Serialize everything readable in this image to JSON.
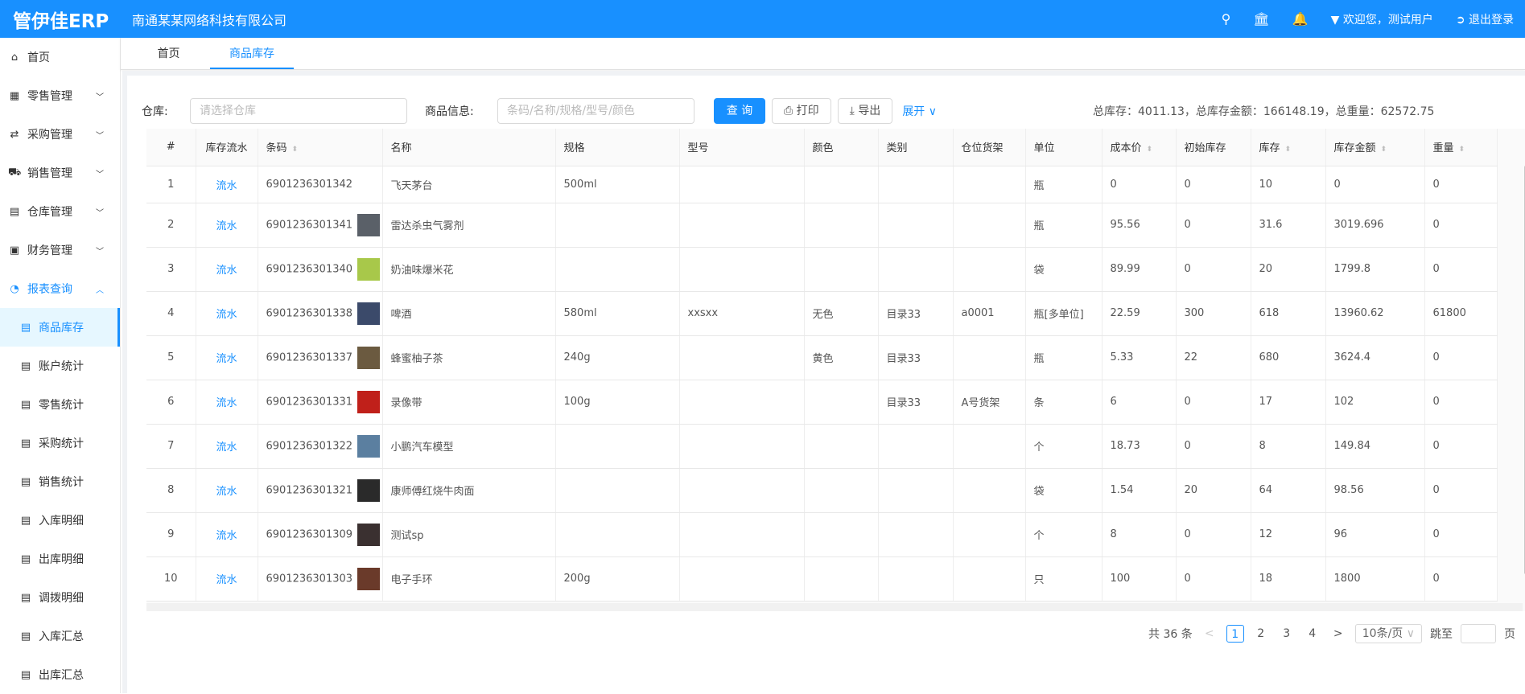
{
  "header": {
    "logo": "管伊佳ERP",
    "company": "南通某某网络科技有限公司",
    "welcome": "欢迎您，测试用户",
    "logout": "退出登录",
    "brand_color": "#1890ff"
  },
  "sidebar": {
    "items": [
      {
        "label": "首页",
        "icon": "home-icon"
      },
      {
        "label": "零售管理",
        "icon": "gift-icon"
      },
      {
        "label": "采购管理",
        "icon": "swap-icon"
      },
      {
        "label": "销售管理",
        "icon": "cart-icon"
      },
      {
        "label": "仓库管理",
        "icon": "warehouse-icon"
      },
      {
        "label": "财务管理",
        "icon": "finance-icon"
      },
      {
        "label": "报表查询",
        "icon": "pie-chart-icon"
      }
    ],
    "sub_items": [
      "商品库存",
      "账户统计",
      "零售统计",
      "采购统计",
      "销售统计",
      "入库明细",
      "出库明细",
      "调拨明细",
      "入库汇总",
      "出库汇总"
    ]
  },
  "tabs": [
    "首页",
    "商品库存"
  ],
  "toolbar": {
    "warehouse_label": "仓库:",
    "warehouse_placeholder": "请选择仓库",
    "goods_label": "商品信息:",
    "goods_placeholder": "条码/名称/规格/型号/颜色",
    "query": "查 询",
    "print": "打印",
    "export": "导出",
    "expand": "展开"
  },
  "summary": "总库存：4011.13，总库存金额：166148.19，总重量：62572.75",
  "table": {
    "columns": [
      "#",
      "库存流水",
      "条码",
      "名称",
      "规格",
      "型号",
      "颜色",
      "类别",
      "仓位货架",
      "单位",
      "成本价",
      "初始库存",
      "库存",
      "库存金额",
      "重量"
    ],
    "rows": [
      [
        "1",
        "流水",
        "6901236301342",
        "飞天茅台",
        "500ml",
        "",
        "",
        "",
        "",
        "瓶",
        "0",
        "0",
        "10",
        "0",
        "0"
      ],
      [
        "2",
        "流水",
        "6901236301341",
        "雷达杀虫气雾剂",
        "",
        "",
        "",
        "",
        "",
        "瓶",
        "95.56",
        "0",
        "31.6",
        "3019.696",
        "0"
      ],
      [
        "3",
        "流水",
        "6901236301340",
        "奶油味爆米花",
        "",
        "",
        "",
        "",
        "",
        "袋",
        "89.99",
        "0",
        "20",
        "1799.8",
        "0"
      ],
      [
        "4",
        "流水",
        "6901236301338",
        "啤酒",
        "580ml",
        "xxsxx",
        "无色",
        "目录33",
        "a0001",
        "瓶[多单位]",
        "22.59",
        "300",
        "618",
        "13960.62",
        "61800"
      ],
      [
        "5",
        "流水",
        "6901236301337",
        "蜂蜜柚子茶",
        "240g",
        "",
        "黄色",
        "目录33",
        "",
        "瓶",
        "5.33",
        "22",
        "680",
        "3624.4",
        "0"
      ],
      [
        "6",
        "流水",
        "6901236301331",
        "录像带",
        "100g",
        "",
        "",
        "目录33",
        "A号货架",
        "条",
        "6",
        "0",
        "17",
        "102",
        "0"
      ],
      [
        "7",
        "流水",
        "6901236301322",
        "小鹏汽车模型",
        "",
        "",
        "",
        "",
        "",
        "个",
        "18.73",
        "0",
        "8",
        "149.84",
        "0"
      ],
      [
        "8",
        "流水",
        "6901236301321",
        "康师傅红烧牛肉面",
        "",
        "",
        "",
        "",
        "",
        "袋",
        "1.54",
        "20",
        "64",
        "98.56",
        "0"
      ],
      [
        "9",
        "流水",
        "6901236301309",
        "测试sp",
        "",
        "",
        "",
        "",
        "",
        "个",
        "8",
        "0",
        "12",
        "96",
        "0"
      ],
      [
        "10",
        "流水",
        "6901236301303",
        "电子手环",
        "200g",
        "",
        "",
        "",
        "",
        "只",
        "100",
        "0",
        "18",
        "1800",
        "0"
      ]
    ]
  },
  "pagination": {
    "total": "共 36 条",
    "pages": [
      "1",
      "2",
      "3",
      "4"
    ],
    "current": "1",
    "page_size": "10条/页",
    "jump_label": "跳至",
    "page_suffix": "页"
  }
}
